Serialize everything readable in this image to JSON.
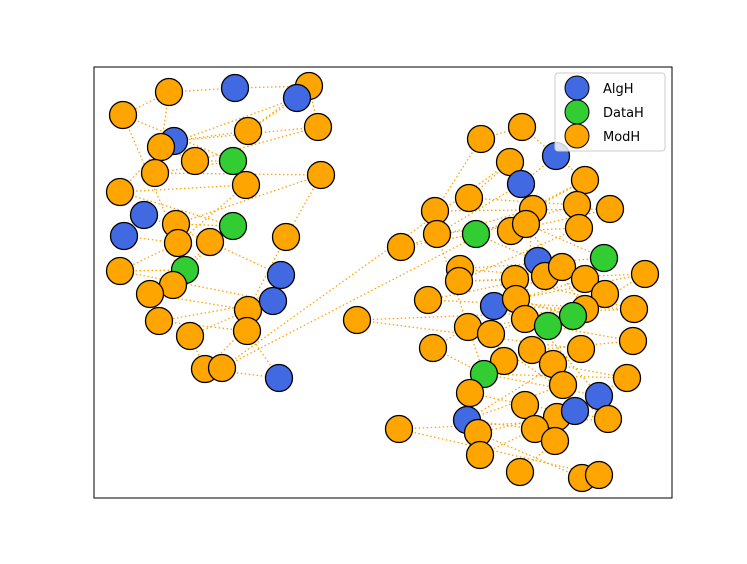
{
  "legend": {
    "items": [
      {
        "label": "AlgH",
        "color": "#4169e1"
      },
      {
        "label": "DataH",
        "color": "#32cd32"
      },
      {
        "label": "ModH",
        "color": "#ffa500"
      }
    ]
  },
  "style": {
    "edge_color": "#ffa500",
    "node_stroke": "#000000"
  },
  "nodes": [
    {
      "id": 0,
      "type": "ModH"
    },
    {
      "id": 1,
      "type": "AlgH"
    },
    {
      "id": 2,
      "type": "ModH"
    },
    {
      "id": 3,
      "type": "ModH"
    },
    {
      "id": 4,
      "type": "AlgH"
    },
    {
      "id": 5,
      "type": "ModH"
    },
    {
      "id": 6,
      "type": "ModH"
    },
    {
      "id": 7,
      "type": "AlgH"
    },
    {
      "id": 8,
      "type": "ModH"
    },
    {
      "id": 9,
      "type": "ModH"
    },
    {
      "id": 10,
      "type": "DataH"
    },
    {
      "id": 11,
      "type": "ModH"
    },
    {
      "id": 12,
      "type": "ModH"
    },
    {
      "id": 13,
      "type": "ModH"
    },
    {
      "id": 14,
      "type": "AlgH"
    },
    {
      "id": 15,
      "type": "ModH"
    },
    {
      "id": 16,
      "type": "DataH"
    },
    {
      "id": 17,
      "type": "AlgH"
    },
    {
      "id": 18,
      "type": "ModH"
    },
    {
      "id": 19,
      "type": "ModH"
    },
    {
      "id": 20,
      "type": "ModH"
    },
    {
      "id": 21,
      "type": "ModH"
    },
    {
      "id": 22,
      "type": "DataH"
    },
    {
      "id": 23,
      "type": "ModH"
    },
    {
      "id": 24,
      "type": "ModH"
    },
    {
      "id": 25,
      "type": "ModH"
    },
    {
      "id": 26,
      "type": "AlgH"
    },
    {
      "id": 27,
      "type": "ModH"
    },
    {
      "id": 28,
      "type": "AlgH"
    },
    {
      "id": 29,
      "type": "ModH"
    },
    {
      "id": 30,
      "type": "ModH"
    },
    {
      "id": 31,
      "type": "ModH"
    },
    {
      "id": 32,
      "type": "ModH"
    },
    {
      "id": 33,
      "type": "AlgH"
    },
    {
      "id": 34,
      "type": "ModH"
    },
    {
      "id": 35,
      "type": "ModH"
    },
    {
      "id": 36,
      "type": "ModH"
    },
    {
      "id": 37,
      "type": "ModH"
    },
    {
      "id": 38,
      "type": "AlgH"
    },
    {
      "id": 39,
      "type": "ModH"
    },
    {
      "id": 40,
      "type": "AlgH"
    },
    {
      "id": 41,
      "type": "ModH"
    },
    {
      "id": 42,
      "type": "ModH"
    },
    {
      "id": 43,
      "type": "ModH"
    },
    {
      "id": 44,
      "type": "ModH"
    },
    {
      "id": 45,
      "type": "ModH"
    },
    {
      "id": 46,
      "type": "ModH"
    },
    {
      "id": 47,
      "type": "ModH"
    },
    {
      "id": 48,
      "type": "DataH"
    },
    {
      "id": 49,
      "type": "ModH"
    },
    {
      "id": 50,
      "type": "ModH"
    },
    {
      "id": 51,
      "type": "ModH"
    },
    {
      "id": 52,
      "type": "DataH"
    },
    {
      "id": 53,
      "type": "AlgH"
    },
    {
      "id": 54,
      "type": "ModH"
    },
    {
      "id": 55,
      "type": "ModH"
    },
    {
      "id": 56,
      "type": "ModH"
    },
    {
      "id": 57,
      "type": "ModH"
    },
    {
      "id": 58,
      "type": "ModH"
    },
    {
      "id": 59,
      "type": "ModH"
    },
    {
      "id": 60,
      "type": "ModH"
    },
    {
      "id": 61,
      "type": "ModH"
    },
    {
      "id": 62,
      "type": "AlgH"
    },
    {
      "id": 63,
      "type": "ModH"
    },
    {
      "id": 64,
      "type": "ModH"
    },
    {
      "id": 65,
      "type": "ModH"
    },
    {
      "id": 66,
      "type": "ModH"
    },
    {
      "id": 67,
      "type": "DataH"
    },
    {
      "id": 68,
      "type": "ModH"
    },
    {
      "id": 69,
      "type": "DataH"
    },
    {
      "id": 70,
      "type": "ModH"
    },
    {
      "id": 71,
      "type": "ModH"
    },
    {
      "id": 72,
      "type": "ModH"
    },
    {
      "id": 73,
      "type": "ModH"
    },
    {
      "id": 74,
      "type": "ModH"
    },
    {
      "id": 75,
      "type": "ModH"
    },
    {
      "id": 76,
      "type": "ModH"
    },
    {
      "id": 77,
      "type": "ModH"
    },
    {
      "id": 78,
      "type": "ModH"
    },
    {
      "id": 79,
      "type": "DataH"
    },
    {
      "id": 80,
      "type": "ModH"
    },
    {
      "id": 81,
      "type": "ModH"
    },
    {
      "id": 82,
      "type": "ModH"
    },
    {
      "id": 83,
      "type": "AlgH"
    },
    {
      "id": 84,
      "type": "ModH"
    },
    {
      "id": 85,
      "type": "AlgH"
    },
    {
      "id": 86,
      "type": "ModH"
    },
    {
      "id": 87,
      "type": "AlgH"
    },
    {
      "id": 88,
      "type": "ModH"
    },
    {
      "id": 89,
      "type": "ModH"
    },
    {
      "id": 90,
      "type": "ModH"
    },
    {
      "id": 91,
      "type": "ModH"
    },
    {
      "id": 92,
      "type": "ModH"
    },
    {
      "id": 93,
      "type": "ModH"
    },
    {
      "id": 94,
      "type": "ModH"
    },
    {
      "id": 95,
      "type": "ModH"
    },
    {
      "id": 96,
      "type": "ModH"
    },
    {
      "id": 97,
      "type": "ModH"
    }
  ],
  "edges": [
    [
      0,
      3
    ],
    [
      0,
      8
    ],
    [
      0,
      1
    ],
    [
      1,
      2
    ],
    [
      2,
      6
    ],
    [
      3,
      19
    ],
    [
      3,
      10
    ],
    [
      4,
      5
    ],
    [
      4,
      8
    ],
    [
      5,
      7
    ],
    [
      6,
      7
    ],
    [
      6,
      9
    ],
    [
      7,
      11
    ],
    [
      8,
      12
    ],
    [
      8,
      9
    ],
    [
      9,
      10
    ],
    [
      10,
      11
    ],
    [
      10,
      13
    ],
    [
      11,
      15
    ],
    [
      12,
      16
    ],
    [
      12,
      13
    ],
    [
      13,
      19
    ],
    [
      14,
      17
    ],
    [
      14,
      20
    ],
    [
      15,
      21
    ],
    [
      16,
      18
    ],
    [
      16,
      22
    ],
    [
      16,
      25
    ],
    [
      17,
      19
    ],
    [
      18,
      24
    ],
    [
      19,
      23
    ],
    [
      20,
      26
    ],
    [
      21,
      27
    ],
    [
      22,
      24
    ],
    [
      22,
      23
    ],
    [
      23,
      28
    ],
    [
      24,
      25
    ],
    [
      25,
      27
    ],
    [
      26,
      30
    ],
    [
      27,
      31
    ],
    [
      28,
      32
    ],
    [
      28,
      29
    ],
    [
      29,
      30
    ],
    [
      30,
      33
    ],
    [
      31,
      32
    ],
    [
      32,
      33
    ],
    [
      2,
      5
    ],
    [
      15,
      18
    ],
    [
      34,
      37
    ],
    [
      34,
      41
    ],
    [
      35,
      36
    ],
    [
      35,
      42
    ],
    [
      36,
      38
    ],
    [
      37,
      39
    ],
    [
      38,
      40
    ],
    [
      38,
      41
    ],
    [
      39,
      44
    ],
    [
      40,
      47
    ],
    [
      41,
      43
    ],
    [
      42,
      45
    ],
    [
      43,
      46
    ],
    [
      44,
      48
    ],
    [
      45,
      49
    ],
    [
      46,
      48
    ],
    [
      47,
      50
    ],
    [
      48,
      53
    ],
    [
      49,
      51
    ],
    [
      50,
      52
    ],
    [
      51,
      55
    ],
    [
      52,
      54
    ],
    [
      53,
      58
    ],
    [
      54,
      57
    ],
    [
      55,
      56
    ],
    [
      55,
      59
    ],
    [
      56,
      60
    ],
    [
      57,
      61
    ],
    [
      58,
      64
    ],
    [
      59,
      62
    ],
    [
      60,
      63
    ],
    [
      61,
      66
    ],
    [
      62,
      65
    ],
    [
      63,
      67
    ],
    [
      64,
      68
    ],
    [
      65,
      69
    ],
    [
      66,
      70
    ],
    [
      67,
      71
    ],
    [
      68,
      72
    ],
    [
      69,
      73
    ],
    [
      70,
      74
    ],
    [
      71,
      75
    ],
    [
      72,
      76
    ],
    [
      73,
      77
    ],
    [
      74,
      78
    ],
    [
      75,
      79
    ],
    [
      76,
      80
    ],
    [
      77,
      81
    ],
    [
      78,
      82
    ],
    [
      79,
      83
    ],
    [
      80,
      84
    ],
    [
      81,
      85
    ],
    [
      82,
      86
    ],
    [
      83,
      87
    ],
    [
      84,
      88
    ],
    [
      85,
      89
    ],
    [
      86,
      90
    ],
    [
      87,
      91
    ],
    [
      88,
      92
    ],
    [
      89,
      93
    ],
    [
      90,
      94
    ],
    [
      91,
      95
    ],
    [
      92,
      96
    ],
    [
      93,
      97
    ],
    [
      60,
      79
    ],
    [
      47,
      79
    ],
    [
      43,
      68
    ],
    [
      71,
      88
    ],
    [
      95,
      97
    ],
    [
      50,
      65
    ],
    [
      56,
      66
    ],
    [
      74,
      85
    ],
    [
      63,
      83
    ],
    [
      79,
      82
    ]
  ]
}
